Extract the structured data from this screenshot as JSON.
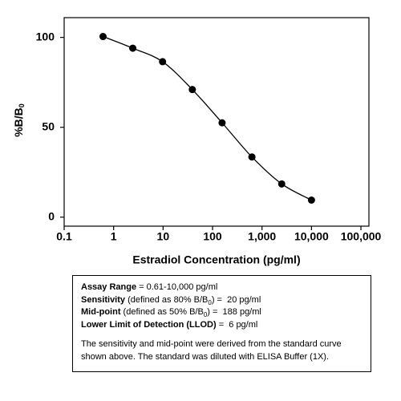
{
  "chart_data": {
    "type": "line",
    "x_label": "Estradiol Concentration (pg/ml)",
    "y_label": "%B/B",
    "y_label_sub": "0",
    "xscale": "log",
    "xlim": [
      0.1,
      145000
    ],
    "ylim": [
      -5,
      111
    ],
    "xticks": [
      0.1,
      1,
      10,
      100,
      {
        "value": 1000,
        "label": "1,000"
      },
      {
        "value": 10000,
        "label": "10,000"
      },
      {
        "value": 100000,
        "label": "100,000"
      }
    ],
    "yticks": [
      0,
      50,
      100
    ],
    "series": [
      {
        "color": "#000000",
        "x": [
          0.61,
          2.44,
          9.77,
          39,
          156,
          625,
          2500,
          10000
        ],
        "values": [
          100.5,
          94,
          86.5,
          71,
          52.5,
          33.5,
          18.5,
          9.5
        ]
      }
    ]
  },
  "info_box": {
    "lines": [
      [
        {
          "text": "Assay Range",
          "bold": true
        },
        {
          "text": " = 0.61-10,000 pg/ml"
        }
      ],
      [
        {
          "text": "Sensitivity",
          "bold": true
        },
        {
          "text": " (defined as 80% B/B"
        },
        {
          "text": "0",
          "sub": true
        },
        {
          "text": ") =  20 pg/ml"
        }
      ],
      [
        {
          "text": "Mid-point",
          "bold": true
        },
        {
          "text": " (defined as 50% B/B"
        },
        {
          "text": "0",
          "sub": true
        },
        {
          "text": ") =  188 pg/ml"
        }
      ],
      [
        {
          "text": "Lower Limit of Detection (LLOD)",
          "bold": true
        },
        {
          "text": " =  6 pg/ml"
        }
      ]
    ],
    "note": [
      "The sensitivity and mid-point were derived from the standard curve",
      "shown above. The standard was diluted with ELISA Buffer (1X)."
    ]
  }
}
